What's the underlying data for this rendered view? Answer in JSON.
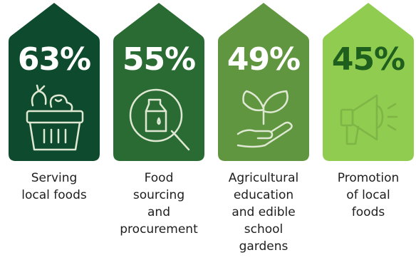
{
  "colors": {
    "card1": "#0e4a2d",
    "card2": "#2a6b34",
    "card3": "#5f963f",
    "card4": "#8fcc4f",
    "card4_text": "#1f5f1e",
    "icon_light": "#dfe8d2"
  },
  "cards": [
    {
      "percent": "63%",
      "label": "Serving\nlocal foods",
      "icon": "basket-of-vegetables-icon"
    },
    {
      "percent": "55%",
      "label": "Food\nsourcing\nand\nprocurement",
      "icon": "magnifier-milk-carton-icon"
    },
    {
      "percent": "49%",
      "label": "Agricultural\neducation\nand edible\nschool\ngardens",
      "icon": "hand-holding-sprout-icon"
    },
    {
      "percent": "45%",
      "label": "Promotion\nof local\nfoods",
      "icon": "megaphone-icon"
    }
  ]
}
